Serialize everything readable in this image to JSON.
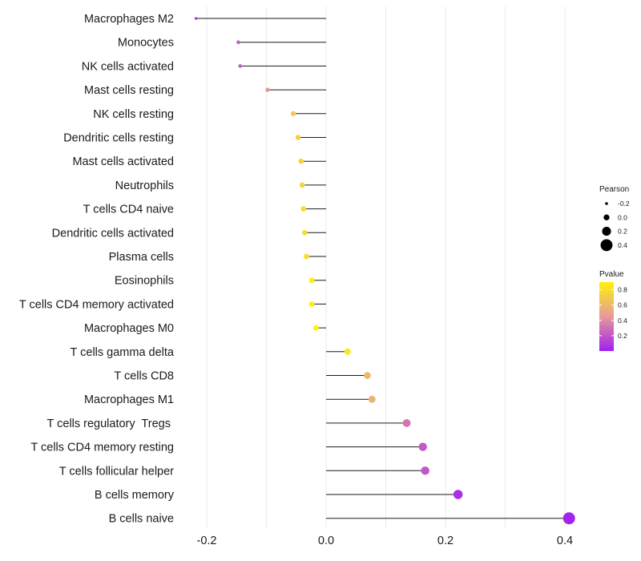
{
  "chart_data": {
    "type": "scatter",
    "subtype": "lollipop",
    "title": "",
    "xlabel": "",
    "ylabel": "",
    "xlim": [
      -0.245,
      0.425
    ],
    "x_ticks": [
      -0.2,
      0.0,
      0.2,
      0.4
    ],
    "x_tick_labels": [
      "-0.2",
      "0.0",
      "0.2",
      "0.4"
    ],
    "grid": true,
    "categories": [
      "Macrophages M2",
      "Monocytes",
      "NK cells activated",
      "Mast cells resting",
      "NK cells resting",
      "Dendritic cells resting",
      "Mast cells activated",
      "Neutrophils",
      "T cells CD4 naive",
      "Dendritic cells activated",
      "Plasma cells",
      "Eosinophils",
      "T cells CD4 memory activated",
      "Macrophages M0",
      "T cells gamma delta",
      "T cells CD8",
      "Macrophages M1",
      "T cells regulatory  Tregs ",
      "T cells CD4 memory resting",
      "T cells follicular helper",
      "B cells memory",
      "B cells naive"
    ],
    "pearson": [
      -0.218,
      -0.147,
      -0.144,
      -0.098,
      -0.055,
      -0.047,
      -0.042,
      -0.04,
      -0.038,
      -0.036,
      -0.033,
      -0.024,
      -0.024,
      -0.017,
      0.036,
      0.069,
      0.077,
      0.135,
      0.162,
      0.166,
      0.221,
      0.407
    ],
    "pvalue": [
      0.02,
      0.22,
      0.22,
      0.45,
      0.68,
      0.72,
      0.74,
      0.75,
      0.78,
      0.79,
      0.8,
      0.88,
      0.88,
      0.92,
      0.85,
      0.6,
      0.57,
      0.32,
      0.22,
      0.2,
      0.06,
      0.01
    ],
    "legend": {
      "size_title": "Pearson",
      "size_breaks": [
        -0.2,
        0.0,
        0.2,
        0.4
      ],
      "size_labels": [
        "-0.2",
        "0.0",
        "0.2",
        "0.4"
      ],
      "color_title": "Pvalue",
      "color_range": [
        0.0,
        0.9
      ],
      "color_breaks": [
        0.8,
        0.6,
        0.4,
        0.2
      ],
      "color_labels": [
        "0.8",
        "0.6",
        "0.4",
        "0.2"
      ],
      "placement": "right"
    },
    "colors": {
      "low": "#a21ff0",
      "mid": "#e69a9a",
      "high": "#fef20a",
      "stem": "#1a1a1a",
      "grid": "#ebebeb"
    }
  }
}
